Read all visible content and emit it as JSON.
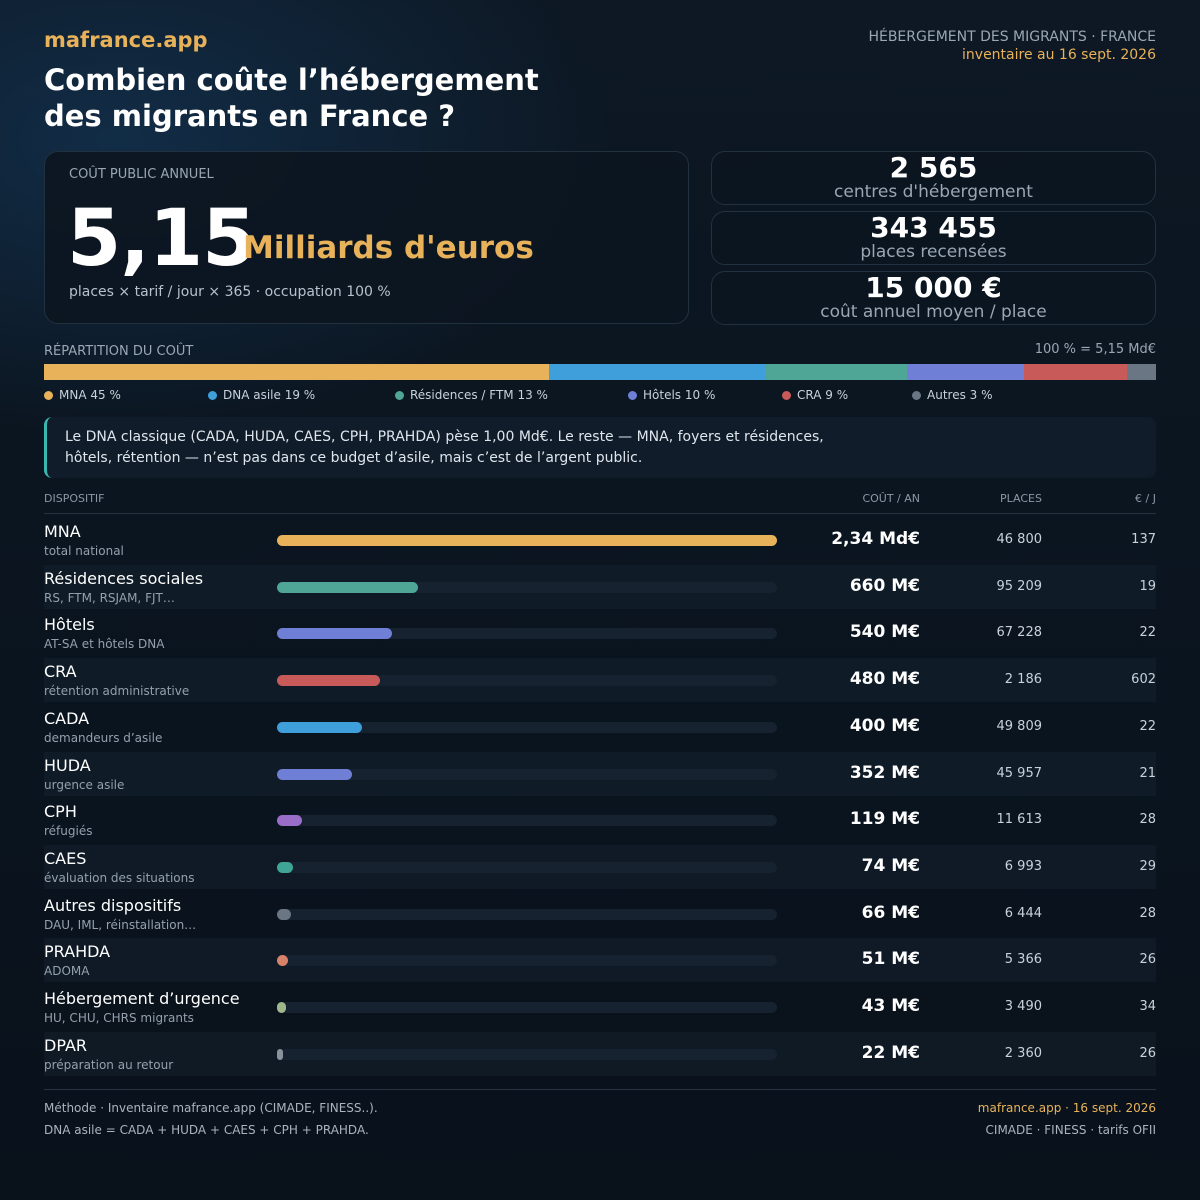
{
  "header": {
    "brand": "mafrance.app",
    "title_line1": "Combien coûte l’hébergement",
    "title_line2": "des migrants en France ?",
    "topic": "HÉBERGEMENT DES MIGRANTS  ·  FRANCE",
    "date": "inventaire au 16 sept. 2026"
  },
  "main_card": {
    "label": "COÛT PUBLIC ANNUEL",
    "value": "5,15",
    "unit": "Milliards d'euros",
    "formula": "places × tarif / jour × 365   ·   occupation 100 %"
  },
  "kpis": [
    {
      "value": "2 565",
      "label": "centres d'hébergement"
    },
    {
      "value": "343 455",
      "label": "places recensées"
    },
    {
      "value": "15 000 €",
      "label": "coût annuel moyen / place"
    }
  ],
  "repartition": {
    "label": "RÉPARTITION DU COÛT",
    "total": "100 %  =  5,15 Md€",
    "legend": [
      {
        "label": "MNA 45 %",
        "pct": 45.4,
        "color": "#e8b25a"
      },
      {
        "label": "DNA asile 19 %",
        "pct": 19.4,
        "color": "#3f9fdb"
      },
      {
        "label": "Résidences / FTM 13 %",
        "pct": 12.8,
        "color": "#4fa596"
      },
      {
        "label": "Hôtels 10 %",
        "pct": 10.5,
        "color": "#6f7fd6"
      },
      {
        "label": "CRA 9 %",
        "pct": 9.3,
        "color": "#c85a5a"
      },
      {
        "label": "Autres 3 %",
        "pct": 2.6,
        "color": "#6a7683"
      }
    ]
  },
  "note": {
    "line1": "Le DNA classique (CADA, HUDA, CAES, CPH, PRAHDA) pèse 1,00 Md€. Le reste — MNA, foyers et résidences,",
    "line2": "hôtels, rétention — n’est pas dans ce budget d’asile, mais c’est de l’argent public."
  },
  "table": {
    "col_dispositif": "DISPOSITIF",
    "col_cost": "COÛT / AN",
    "col_places": "PLACES",
    "col_eur": "€ / J"
  },
  "chart_data": {
    "type": "bar",
    "categories": [
      "MNA",
      "Résidences sociales",
      "Hôtels",
      "CRA",
      "CADA",
      "HUDA",
      "CPH",
      "CAES",
      "Autres dispositifs",
      "PRAHDA",
      "Hébergement d’urgence",
      "DPAR"
    ],
    "subtitles": [
      "total national",
      "RS, FTM, RSJAM, FJT…",
      "AT-SA et hôtels DNA",
      "rétention administrative",
      "demandeurs d’asile",
      "urgence asile",
      "réfugiés",
      "évaluation des situations",
      "DAU, IML, réinstallation…",
      "ADOMA",
      "HU, CHU, CHRS migrants",
      "préparation au retour"
    ],
    "values_meur": [
      2340,
      660,
      540,
      480,
      400,
      352,
      119,
      74,
      66,
      51,
      43,
      22
    ],
    "cost_labels": [
      "2,34 Md€",
      "660 M€",
      "540 M€",
      "480 M€",
      "400 M€",
      "352 M€",
      "119 M€",
      "74 M€",
      "66 M€",
      "51 M€",
      "43 M€",
      "22 M€"
    ],
    "places": [
      "46 800",
      "95 209",
      "67 228",
      "2 186",
      "49 809",
      "45 957",
      "11 613",
      "6 993",
      "6 444",
      "5 366",
      "3 490",
      "2 360"
    ],
    "eur_per_day": [
      "137",
      "19",
      "22",
      "602",
      "22",
      "21",
      "28",
      "29",
      "28",
      "26",
      "34",
      "26"
    ],
    "colors": [
      "#e8b25a",
      "#4fa596",
      "#6f7fd6",
      "#c85a5a",
      "#3f9fdb",
      "#6f7fd6",
      "#9a6ec8",
      "#3fa596",
      "#6a7683",
      "#d9826a",
      "#9fb88a",
      "#8a939c"
    ],
    "xlim": [
      0,
      2340
    ]
  },
  "footer": {
    "left1": "Méthode  ·  Inventaire mafrance.app (CIMADE, FINESS..).",
    "left2": "DNA asile = CADA + HUDA + CAES + CPH + PRAHDA.",
    "right1": "mafrance.app  ·  16 sept. 2026",
    "right2": "CIMADE · FINESS · tarifs OFII"
  }
}
